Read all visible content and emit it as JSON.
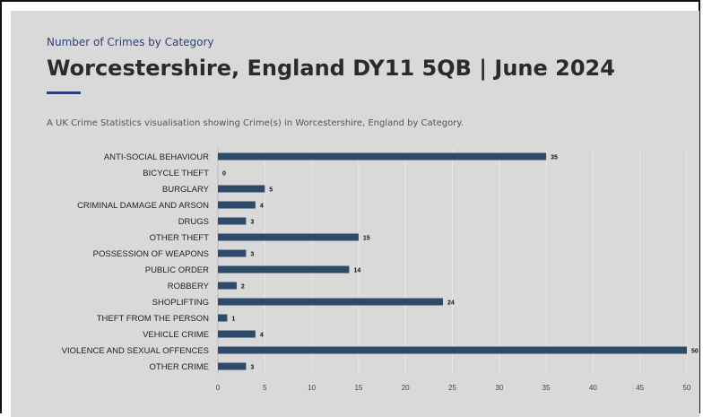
{
  "header": {
    "eyebrow": "Number of Crimes by Category",
    "title": "Worcestershire, England DY11 5QB | June 2024",
    "description": "A UK Crime Statistics visualisation showing Crime(s) in Worcestershire, England by Category."
  },
  "colors": {
    "bar": "#2e4a6b",
    "accent": "#2e3f7c",
    "card_background": "#d9d9d9",
    "grid": "#e8e8e8"
  },
  "chart_data": {
    "type": "bar",
    "orientation": "horizontal",
    "categories": [
      "ANTI-SOCIAL BEHAVIOUR",
      "BICYCLE THEFT",
      "BURGLARY",
      "CRIMINAL DAMAGE AND ARSON",
      "DRUGS",
      "OTHER THEFT",
      "POSSESSION OF WEAPONS",
      "PUBLIC ORDER",
      "ROBBERY",
      "SHOPLIFTING",
      "THEFT FROM THE PERSON",
      "VEHICLE CRIME",
      "VIOLENCE AND SEXUAL OFFENCES",
      "OTHER CRIME"
    ],
    "values": [
      35,
      0,
      5,
      4,
      3,
      15,
      3,
      14,
      2,
      24,
      1,
      4,
      50,
      3
    ],
    "xlim": [
      0,
      50
    ],
    "xticks": [
      0,
      5,
      10,
      15,
      20,
      25,
      30,
      35,
      40,
      45,
      50
    ],
    "grid": true,
    "data_labels": true,
    "title": "",
    "xlabel": "",
    "ylabel": ""
  }
}
